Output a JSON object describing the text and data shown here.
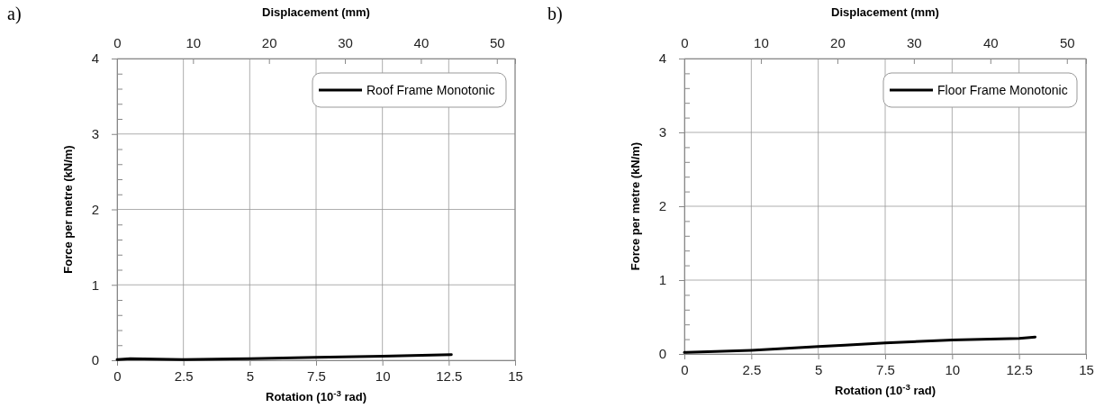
{
  "chart_data": [
    {
      "type": "line",
      "title": "a)",
      "xlabel": "Rotation (10$^{-3}$ rad)",
      "ylabel": "Force per metre (kN/m)",
      "x2label": "Displacement (mm)",
      "xlim": [
        0,
        15
      ],
      "xticks": [
        0,
        2.5,
        5,
        7.5,
        10,
        12.5,
        15
      ],
      "x2lim": [
        0,
        52.4
      ],
      "x2ticks": [
        0,
        10,
        20,
        30,
        40,
        50
      ],
      "ylim": [
        0,
        4
      ],
      "yticks": [
        0,
        {
          "value": 0.2,
          "label": null
        },
        {
          "value": 0.4,
          "label": null
        },
        {
          "value": 0.6,
          "label": null
        },
        {
          "value": 0.8,
          "label": null
        },
        1,
        {
          "value": 1.2,
          "label": null
        },
        {
          "value": 1.4,
          "label": null
        },
        {
          "value": 1.6,
          "label": null
        },
        {
          "value": 1.8,
          "label": null
        },
        2,
        {
          "value": 2.2,
          "label": null
        },
        {
          "value": 2.4,
          "label": null
        },
        {
          "value": 2.6,
          "label": null
        },
        {
          "value": 2.8,
          "label": null
        },
        3,
        {
          "value": 3.2,
          "label": null
        },
        {
          "value": 3.4,
          "label": null
        },
        {
          "value": 3.6,
          "label": null
        },
        {
          "value": 3.8,
          "label": null
        },
        4
      ],
      "grid": true,
      "legend": "top right",
      "line_style": "solid",
      "series": [
        {
          "name": "Roof Frame Monotonic",
          "color": "#000000",
          "x": [
            0,
            0.5,
            2.5,
            5,
            7.5,
            10,
            12.6
          ],
          "values": [
            0.01,
            0.02,
            0.01,
            0.02,
            0.04,
            0.055,
            0.075
          ]
        }
      ]
    },
    {
      "type": "line",
      "title": "b)",
      "xlabel": "Rotation (10$^{-3}$ rad)",
      "ylabel": "Force per metre (kN/m)",
      "x2label": "Displacement (mm)",
      "xlim": [
        0,
        15
      ],
      "xticks": [
        0,
        2.5,
        5,
        7.5,
        10,
        12.5,
        15
      ],
      "x2lim": [
        0,
        52.5
      ],
      "x2ticks": [
        0,
        10,
        20,
        30,
        40,
        50
      ],
      "ylim": [
        0,
        4
      ],
      "yticks": [
        0,
        {
          "value": 0.2,
          "label": null
        },
        {
          "value": 0.4,
          "label": null
        },
        {
          "value": 0.6,
          "label": null
        },
        {
          "value": 0.8,
          "label": null
        },
        1,
        {
          "value": 1.2,
          "label": null
        },
        {
          "value": 1.4,
          "label": null
        },
        {
          "value": 1.6,
          "label": null
        },
        {
          "value": 1.8,
          "label": null
        },
        2,
        {
          "value": 2.2,
          "label": null
        },
        {
          "value": 2.4,
          "label": null
        },
        {
          "value": 2.6,
          "label": null
        },
        {
          "value": 2.8,
          "label": null
        },
        3,
        {
          "value": 3.2,
          "label": null
        },
        {
          "value": 3.4,
          "label": null
        },
        {
          "value": 3.6,
          "label": null
        },
        {
          "value": 3.8,
          "label": null
        },
        4
      ],
      "grid": true,
      "legend": "top right",
      "line_style": "solid",
      "series": [
        {
          "name": "Floor Frame Monotonic",
          "color": "#000000",
          "x": [
            0,
            2.5,
            5,
            6,
            7.5,
            10,
            12.5,
            13.1
          ],
          "values": [
            0.02,
            0.05,
            0.1,
            0.12,
            0.15,
            0.19,
            0.21,
            0.23
          ]
        }
      ]
    }
  ]
}
